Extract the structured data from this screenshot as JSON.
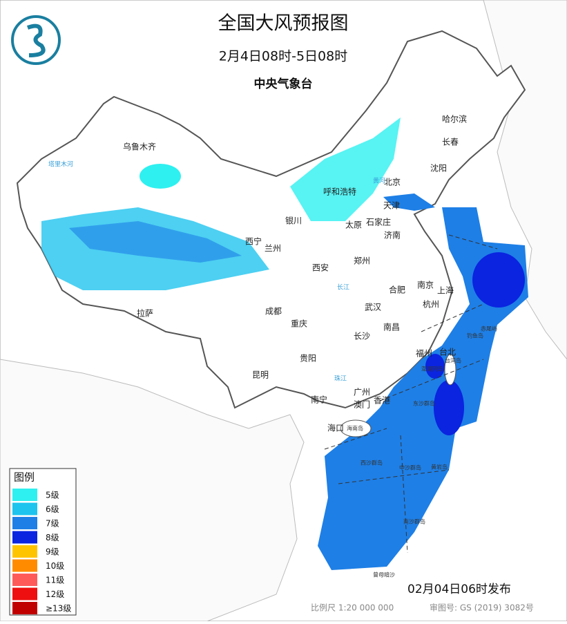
{
  "header": {
    "title": "全国大风预报图",
    "period": "2月4日08时-5日08时",
    "issuer": "中央气象台"
  },
  "cities": [
    "乌鲁木齐",
    "哈尔滨",
    "长春",
    "沈阳",
    "北京",
    "天津",
    "呼和浩特",
    "石家庄",
    "太原",
    "银川",
    "西宁",
    "兰州",
    "济南",
    "郑州",
    "西安",
    "合肥",
    "南京",
    "上海",
    "杭州",
    "武汉",
    "成都",
    "重庆",
    "拉萨",
    "长沙",
    "南昌",
    "福州",
    "台北",
    "贵阳",
    "昆明",
    "南宁",
    "广州",
    "澳门",
    "香港",
    "海口"
  ],
  "islands": [
    "海南岛",
    "东沙群岛",
    "西沙群岛",
    "中沙群岛",
    "黄岩岛",
    "南沙群岛",
    "曾母暗沙",
    "钓鱼岛",
    "赤尾屿",
    "澎湖列岛",
    "台湾岛"
  ],
  "rivers": [
    "塔里木河",
    "长江",
    "黄河",
    "珠江"
  ],
  "legend": {
    "title": "图例",
    "items": [
      {
        "label": "5级",
        "color": "#2ef0f0"
      },
      {
        "label": "6级",
        "color": "#1cc4ee"
      },
      {
        "label": "7级",
        "color": "#1e7fe6"
      },
      {
        "label": "8级",
        "color": "#0a24e0"
      },
      {
        "label": "9级",
        "color": "#ffc400"
      },
      {
        "label": "10级",
        "color": "#ff8c00"
      },
      {
        "label": "11级",
        "color": "#ff5a5a"
      },
      {
        "label": "12级",
        "color": "#ee1010"
      },
      {
        "label": "≥13级",
        "color": "#c00000"
      }
    ]
  },
  "footer": {
    "release": "02月04日06时发布",
    "scale": "比例尺 1:20 000 000",
    "approval": "审图号: GS (2019) 3082号"
  }
}
